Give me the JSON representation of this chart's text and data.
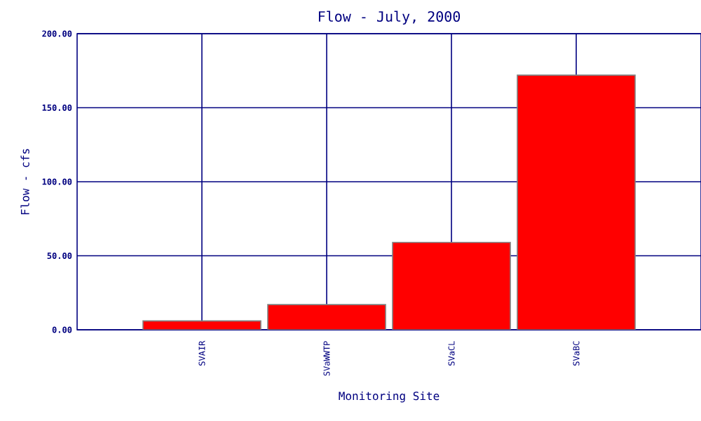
{
  "chart_data": {
    "type": "bar",
    "title": "Flow - July, 2000",
    "xlabel": "Monitoring Site",
    "ylabel": "Flow - cfs",
    "categories": [
      "SVAIR",
      "SVaWWTP",
      "SVaCL",
      "SVaBC"
    ],
    "values": [
      6,
      17,
      59,
      172
    ],
    "color": "#ff0000",
    "ylim": [
      0,
      200
    ],
    "yticks": [
      {
        "value": 0,
        "label": "0.00"
      },
      {
        "value": 50,
        "label": "50.00"
      },
      {
        "value": 100,
        "label": "100.00"
      },
      {
        "value": 150,
        "label": "150.00"
      },
      {
        "value": 200,
        "label": "200.00"
      }
    ],
    "grid": true
  }
}
